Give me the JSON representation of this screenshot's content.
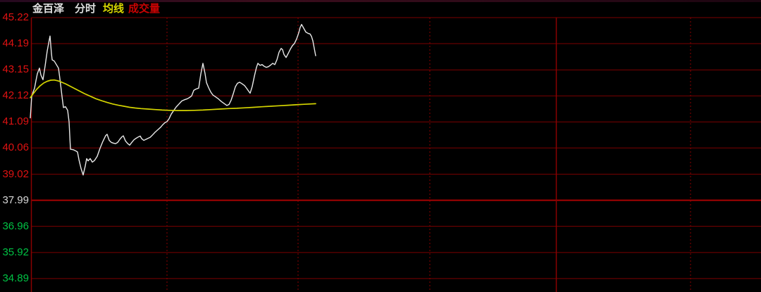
{
  "header": {
    "stock_name": "金百泽",
    "mode_label": "分时",
    "ma_label": "均线",
    "volume_label": "成交量",
    "stock_name_color": "#e3e3e3",
    "ma_color": "#d8d800",
    "volume_color": "#c90303"
  },
  "colors": {
    "background": "#000000",
    "grid_line": "#7c0101",
    "grid_line_prev_close": "#a80202",
    "grid_border": "#8a0101",
    "tick_red": "#df1212",
    "tick_white": "#d8d8d8",
    "tick_green": "#00c244",
    "price_line": "#e8e8e8",
    "ma_line": "#d4d400"
  },
  "chart_data": {
    "type": "line",
    "title": "金百泽 分时",
    "legend": [
      "分时",
      "均线"
    ],
    "grid": true,
    "x_axis": {
      "tick_labels_visible": false,
      "x_unit": "pixel-column (time axis labels not shown in screenshot)"
    },
    "y_axis": {
      "range": [
        34.89,
        45.22
      ],
      "prev_close": 37.99,
      "ticks": [
        {
          "label": "45.22",
          "value": 45.22,
          "color": "#df1212",
          "prev_close": false
        },
        {
          "label": "44.19",
          "value": 44.19,
          "color": "#df1212",
          "prev_close": false
        },
        {
          "label": "43.15",
          "value": 43.15,
          "color": "#df1212",
          "prev_close": false
        },
        {
          "label": "42.12",
          "value": 42.12,
          "color": "#df1212",
          "prev_close": false
        },
        {
          "label": "41.09",
          "value": 41.09,
          "color": "#df1212",
          "prev_close": false
        },
        {
          "label": "40.06",
          "value": 40.06,
          "color": "#df1212",
          "prev_close": false
        },
        {
          "label": "39.02",
          "value": 39.02,
          "color": "#df1212",
          "prev_close": false
        },
        {
          "label": "37.99",
          "value": 37.99,
          "color": "#d8d8d8",
          "prev_close": true
        },
        {
          "label": "36.96",
          "value": 36.96,
          "color": "#00c244",
          "prev_close": false
        },
        {
          "label": "35.92",
          "value": 35.92,
          "color": "#00c244",
          "prev_close": false
        },
        {
          "label": "34.89",
          "value": 34.89,
          "color": "#00c244",
          "prev_close": false
        }
      ]
    },
    "series": [
      {
        "name": "分时",
        "color": "#e8e8e8",
        "width": 1.4,
        "points": [
          [
            43,
            41.25
          ],
          [
            45,
            42.1
          ],
          [
            47,
            42.28
          ],
          [
            49,
            42.42
          ],
          [
            51,
            42.72
          ],
          [
            53,
            43.0
          ],
          [
            56,
            43.22
          ],
          [
            58,
            42.95
          ],
          [
            61,
            42.76
          ],
          [
            64,
            43.3
          ],
          [
            67,
            43.9
          ],
          [
            70,
            44.35
          ],
          [
            71,
            44.49
          ],
          [
            73,
            43.8
          ],
          [
            74,
            43.55
          ],
          [
            77,
            43.5
          ],
          [
            80,
            43.36
          ],
          [
            83,
            43.22
          ],
          [
            85,
            42.8
          ],
          [
            88,
            42.1
          ],
          [
            90,
            41.66
          ],
          [
            93,
            41.69
          ],
          [
            96,
            41.55
          ],
          [
            98,
            41.1
          ],
          [
            100,
            40.01
          ],
          [
            104,
            39.99
          ],
          [
            107,
            39.95
          ],
          [
            110,
            39.9
          ],
          [
            112,
            39.6
          ],
          [
            115,
            39.25
          ],
          [
            118,
            38.99
          ],
          [
            121,
            39.35
          ],
          [
            123,
            39.64
          ],
          [
            125,
            39.55
          ],
          [
            128,
            39.64
          ],
          [
            131,
            39.5
          ],
          [
            134,
            39.56
          ],
          [
            138,
            39.73
          ],
          [
            142,
            40.05
          ],
          [
            146,
            40.32
          ],
          [
            150,
            40.55
          ],
          [
            152,
            40.6
          ],
          [
            155,
            40.36
          ],
          [
            158,
            40.28
          ],
          [
            161,
            40.25
          ],
          [
            164,
            40.23
          ],
          [
            167,
            40.28
          ],
          [
            170,
            40.4
          ],
          [
            173,
            40.5
          ],
          [
            175,
            40.54
          ],
          [
            178,
            40.34
          ],
          [
            181,
            40.24
          ],
          [
            184,
            40.17
          ],
          [
            187,
            40.28
          ],
          [
            190,
            40.38
          ],
          [
            193,
            40.44
          ],
          [
            196,
            40.49
          ],
          [
            199,
            40.53
          ],
          [
            201,
            40.43
          ],
          [
            204,
            40.36
          ],
          [
            207,
            40.4
          ],
          [
            210,
            40.44
          ],
          [
            213,
            40.48
          ],
          [
            216,
            40.56
          ],
          [
            220,
            40.68
          ],
          [
            224,
            40.78
          ],
          [
            228,
            40.88
          ],
          [
            231,
            40.98
          ],
          [
            234,
            41.06
          ],
          [
            237,
            41.1
          ],
          [
            240,
            41.22
          ],
          [
            243,
            41.4
          ],
          [
            246,
            41.52
          ],
          [
            250,
            41.68
          ],
          [
            254,
            41.8
          ],
          [
            258,
            41.92
          ],
          [
            262,
            41.97
          ],
          [
            266,
            42.01
          ],
          [
            269,
            42.06
          ],
          [
            272,
            42.12
          ],
          [
            275,
            42.34
          ],
          [
            278,
            42.39
          ],
          [
            282,
            42.43
          ],
          [
            285,
            42.99
          ],
          [
            288,
            43.41
          ],
          [
            291,
            43.0
          ],
          [
            293,
            42.65
          ],
          [
            296,
            42.45
          ],
          [
            299,
            42.28
          ],
          [
            302,
            42.16
          ],
          [
            306,
            42.08
          ],
          [
            310,
            42.0
          ],
          [
            314,
            41.9
          ],
          [
            318,
            41.82
          ],
          [
            322,
            41.74
          ],
          [
            325,
            41.78
          ],
          [
            328,
            41.95
          ],
          [
            331,
            42.2
          ],
          [
            334,
            42.48
          ],
          [
            337,
            42.62
          ],
          [
            340,
            42.66
          ],
          [
            343,
            42.61
          ],
          [
            347,
            42.53
          ],
          [
            350,
            42.42
          ],
          [
            353,
            42.3
          ],
          [
            355,
            42.23
          ],
          [
            358,
            42.5
          ],
          [
            361,
            42.9
          ],
          [
            364,
            43.25
          ],
          [
            366,
            43.41
          ],
          [
            369,
            43.33
          ],
          [
            372,
            43.36
          ],
          [
            375,
            43.29
          ],
          [
            378,
            43.25
          ],
          [
            381,
            43.28
          ],
          [
            384,
            43.34
          ],
          [
            387,
            43.41
          ],
          [
            390,
            43.36
          ],
          [
            393,
            43.55
          ],
          [
            396,
            43.85
          ],
          [
            399,
            44.0
          ],
          [
            401,
            43.95
          ],
          [
            403,
            43.76
          ],
          [
            406,
            43.64
          ],
          [
            409,
            43.8
          ],
          [
            412,
            43.97
          ],
          [
            415,
            44.11
          ],
          [
            418,
            44.2
          ],
          [
            421,
            44.38
          ],
          [
            424,
            44.62
          ],
          [
            426,
            44.83
          ],
          [
            428,
            44.95
          ],
          [
            431,
            44.8
          ],
          [
            434,
            44.65
          ],
          [
            437,
            44.6
          ],
          [
            440,
            44.57
          ],
          [
            442,
            44.48
          ],
          [
            444,
            44.3
          ],
          [
            446,
            44.0
          ],
          [
            448,
            43.71
          ]
        ]
      },
      {
        "name": "均线",
        "color": "#d4d400",
        "width": 1.7,
        "points": [
          [
            43,
            42.05
          ],
          [
            47,
            42.2
          ],
          [
            52,
            42.38
          ],
          [
            57,
            42.52
          ],
          [
            62,
            42.63
          ],
          [
            67,
            42.7
          ],
          [
            72,
            42.74
          ],
          [
            77,
            42.75
          ],
          [
            82,
            42.72
          ],
          [
            87,
            42.67
          ],
          [
            93,
            42.6
          ],
          [
            99,
            42.51
          ],
          [
            106,
            42.41
          ],
          [
            113,
            42.31
          ],
          [
            120,
            42.21
          ],
          [
            128,
            42.11
          ],
          [
            136,
            42.01
          ],
          [
            144,
            41.93
          ],
          [
            152,
            41.86
          ],
          [
            160,
            41.8
          ],
          [
            168,
            41.75
          ],
          [
            176,
            41.71
          ],
          [
            184,
            41.67
          ],
          [
            192,
            41.64
          ],
          [
            200,
            41.62
          ],
          [
            210,
            41.6
          ],
          [
            220,
            41.58
          ],
          [
            230,
            41.56
          ],
          [
            240,
            41.55
          ],
          [
            252,
            41.54
          ],
          [
            264,
            41.54
          ],
          [
            276,
            41.55
          ],
          [
            288,
            41.56
          ],
          [
            300,
            41.58
          ],
          [
            312,
            41.6
          ],
          [
            324,
            41.62
          ],
          [
            336,
            41.63
          ],
          [
            348,
            41.65
          ],
          [
            360,
            41.67
          ],
          [
            372,
            41.69
          ],
          [
            384,
            41.71
          ],
          [
            396,
            41.73
          ],
          [
            408,
            41.75
          ],
          [
            420,
            41.77
          ],
          [
            432,
            41.79
          ],
          [
            448,
            41.81
          ]
        ]
      }
    ]
  }
}
